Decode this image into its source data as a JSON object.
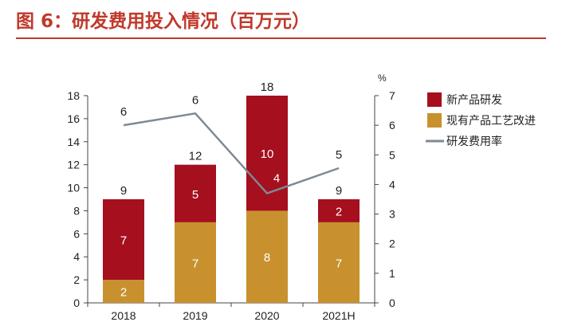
{
  "header": {
    "title": "图 6：研发费用投入情况（百万元）"
  },
  "chart_data": {
    "type": "bar",
    "stacked": true,
    "categories": [
      "2018",
      "2019",
      "2020",
      "2021H"
    ],
    "series": [
      {
        "name": "现有产品工艺改进",
        "values": [
          2,
          7,
          8,
          7
        ],
        "color": "#c8912e",
        "kind": "bar"
      },
      {
        "name": "新产品研发",
        "values": [
          7,
          5,
          10,
          2
        ],
        "color": "#a50f1e",
        "kind": "bar"
      },
      {
        "name": "研发费用率",
        "values": [
          6.0,
          6.4,
          3.7,
          4.55
        ],
        "value_labels": [
          "6",
          "6",
          "4",
          "5"
        ],
        "color": "#7f8895",
        "kind": "line",
        "axis": "right"
      }
    ],
    "totals": [
      9,
      12,
      18,
      9
    ],
    "ylim": [
      0,
      18
    ],
    "yticks": [
      0,
      2,
      4,
      6,
      8,
      10,
      12,
      14,
      16,
      18
    ],
    "y2lim": [
      0,
      7
    ],
    "y2ticks": [
      0,
      1,
      2,
      3,
      4,
      5,
      6,
      7
    ],
    "y2unit": "%",
    "legend_position": "right",
    "grid": false
  }
}
